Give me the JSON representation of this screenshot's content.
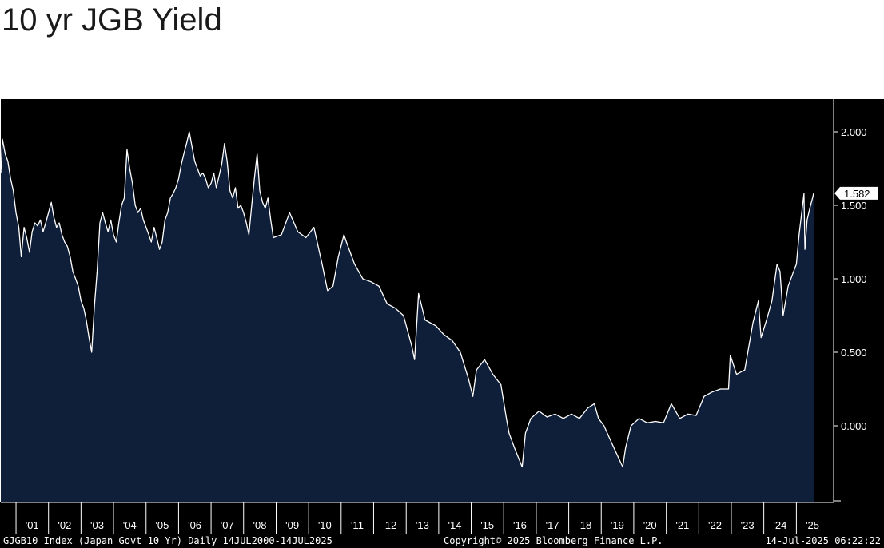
{
  "title": "10 yr JGB Yield",
  "chart_data": {
    "type": "area",
    "ylim": [
      -0.5,
      2.2
    ],
    "xlim": [
      "2000-07-14",
      "2025-07-14"
    ],
    "y_ticks": [
      "2.000",
      "1.500",
      "1.000",
      "0.500",
      "0.000"
    ],
    "x_tick_labels": [
      "'01",
      "'02",
      "'03",
      "'04",
      "'05",
      "'06",
      "'07",
      "'08",
      "'09",
      "'10",
      "'11",
      "'12",
      "'13",
      "'14",
      "'15",
      "'16",
      "'17",
      "'18",
      "'19",
      "'20",
      "'21",
      "'22",
      "'23",
      "'24",
      "'25"
    ],
    "last_value_label": "1.582",
    "colors": {
      "background": "#000000",
      "fill": "#0f1f3a",
      "line": "#ffffff",
      "axis_text": "#ffffff",
      "footer_bg": "#000000"
    },
    "grid": false,
    "series": [
      {
        "x": [
          "2000-07-14",
          "2000-08-01",
          "2000-09-01",
          "2000-10-01",
          "2000-11-01",
          "2000-12-01",
          "2001-01-01",
          "2001-02-01",
          "2001-03-01",
          "2001-04-01",
          "2001-05-01",
          "2001-06-01",
          "2001-07-01",
          "2001-08-01",
          "2001-09-01",
          "2001-10-01",
          "2001-11-01",
          "2001-12-01",
          "2002-01-01",
          "2002-02-01",
          "2002-03-01",
          "2002-04-01",
          "2002-05-01",
          "2002-06-01",
          "2002-07-01",
          "2002-08-01",
          "2002-09-01",
          "2002-10-01",
          "2002-11-01",
          "2002-12-01",
          "2003-01-01",
          "2003-02-01",
          "2003-03-01",
          "2003-04-01",
          "2003-05-01",
          "2003-06-01",
          "2003-07-01",
          "2003-08-01",
          "2003-09-01",
          "2003-10-01",
          "2003-11-01",
          "2003-12-01",
          "2004-01-01",
          "2004-02-01",
          "2004-03-01",
          "2004-04-01",
          "2004-05-01",
          "2004-06-01",
          "2004-07-01",
          "2004-08-01",
          "2004-09-01",
          "2004-10-01",
          "2004-11-01",
          "2004-12-01",
          "2005-01-01",
          "2005-02-01",
          "2005-03-01",
          "2005-04-01",
          "2005-05-01",
          "2005-06-01",
          "2005-07-01",
          "2005-08-01",
          "2005-09-01",
          "2005-10-01",
          "2005-11-01",
          "2005-12-01",
          "2006-01-01",
          "2006-02-01",
          "2006-03-01",
          "2006-04-01",
          "2006-05-01",
          "2006-06-01",
          "2006-07-01",
          "2006-08-01",
          "2006-09-01",
          "2006-10-01",
          "2006-11-01",
          "2006-12-01",
          "2007-01-01",
          "2007-02-01",
          "2007-03-01",
          "2007-04-01",
          "2007-05-01",
          "2007-06-01",
          "2007-07-01",
          "2007-08-01",
          "2007-09-01",
          "2007-10-01",
          "2007-11-01",
          "2007-12-01",
          "2008-01-01",
          "2008-02-01",
          "2008-03-01",
          "2008-04-01",
          "2008-05-01",
          "2008-06-01",
          "2008-07-01",
          "2008-08-01",
          "2008-09-01",
          "2008-10-01",
          "2008-11-01",
          "2008-12-01",
          "2009-03-01",
          "2009-06-01",
          "2009-09-01",
          "2009-12-01",
          "2010-03-01",
          "2010-06-01",
          "2010-08-01",
          "2010-10-01",
          "2010-12-01",
          "2011-02-01",
          "2011-03-01",
          "2011-06-01",
          "2011-09-01",
          "2011-12-01",
          "2012-03-01",
          "2012-06-01",
          "2012-09-01",
          "2012-12-01",
          "2013-03-01",
          "2013-04-05",
          "2013-05-20",
          "2013-08-01",
          "2013-12-01",
          "2014-03-01",
          "2014-06-01",
          "2014-09-01",
          "2014-12-01",
          "2015-01-20",
          "2015-03-01",
          "2015-06-01",
          "2015-09-01",
          "2015-12-01",
          "2016-02-01",
          "2016-03-01",
          "2016-05-01",
          "2016-07-27",
          "2016-09-01",
          "2016-11-01",
          "2017-02-01",
          "2017-05-01",
          "2017-08-01",
          "2017-11-01",
          "2018-02-01",
          "2018-05-01",
          "2018-08-01",
          "2018-10-15",
          "2018-12-01",
          "2019-02-01",
          "2019-05-01",
          "2019-08-30",
          "2019-10-01",
          "2019-12-01",
          "2020-03-01",
          "2020-06-01",
          "2020-09-01",
          "2020-12-01",
          "2021-02-26",
          "2021-06-01",
          "2021-09-01",
          "2021-12-01",
          "2022-03-01",
          "2022-06-01",
          "2022-09-01",
          "2022-12-01",
          "2022-12-21",
          "2023-03-01",
          "2023-06-01",
          "2023-09-01",
          "2023-11-01",
          "2023-12-01",
          "2024-02-01",
          "2024-04-01",
          "2024-05-29",
          "2024-07-01",
          "2024-08-05",
          "2024-10-01",
          "2024-12-01",
          "2025-01-01",
          "2025-02-01",
          "2025-03-27",
          "2025-04-07",
          "2025-05-01",
          "2025-06-01",
          "2025-07-01",
          "2025-07-14"
        ],
        "values": [
          1.72,
          1.95,
          1.85,
          1.8,
          1.68,
          1.6,
          1.45,
          1.35,
          1.15,
          1.35,
          1.28,
          1.18,
          1.32,
          1.38,
          1.36,
          1.4,
          1.32,
          1.38,
          1.45,
          1.52,
          1.42,
          1.35,
          1.38,
          1.3,
          1.25,
          1.22,
          1.15,
          1.05,
          1.0,
          0.95,
          0.85,
          0.8,
          0.72,
          0.6,
          0.5,
          0.82,
          1.05,
          1.38,
          1.45,
          1.38,
          1.32,
          1.4,
          1.3,
          1.25,
          1.38,
          1.5,
          1.55,
          1.88,
          1.75,
          1.65,
          1.5,
          1.45,
          1.48,
          1.4,
          1.35,
          1.3,
          1.25,
          1.35,
          1.28,
          1.2,
          1.25,
          1.4,
          1.45,
          1.55,
          1.58,
          1.62,
          1.68,
          1.78,
          1.85,
          1.92,
          2.0,
          1.9,
          1.8,
          1.75,
          1.7,
          1.72,
          1.68,
          1.62,
          1.65,
          1.72,
          1.62,
          1.7,
          1.78,
          1.92,
          1.8,
          1.6,
          1.55,
          1.62,
          1.48,
          1.5,
          1.45,
          1.38,
          1.3,
          1.5,
          1.68,
          1.85,
          1.6,
          1.52,
          1.48,
          1.55,
          1.4,
          1.28,
          1.3,
          1.45,
          1.32,
          1.28,
          1.35,
          1.1,
          0.92,
          0.95,
          1.15,
          1.3,
          1.25,
          1.1,
          1.0,
          0.98,
          0.95,
          0.83,
          0.8,
          0.75,
          0.55,
          0.45,
          0.9,
          0.72,
          0.68,
          0.62,
          0.58,
          0.5,
          0.32,
          0.2,
          0.38,
          0.45,
          0.35,
          0.28,
          0.05,
          -0.05,
          -0.15,
          -0.28,
          -0.05,
          0.05,
          0.1,
          0.06,
          0.08,
          0.05,
          0.08,
          0.05,
          0.12,
          0.15,
          0.05,
          0.0,
          -0.12,
          -0.28,
          -0.15,
          0.0,
          0.05,
          0.02,
          0.03,
          0.02,
          0.15,
          0.05,
          0.08,
          0.07,
          0.2,
          0.23,
          0.25,
          0.25,
          0.48,
          0.35,
          0.38,
          0.7,
          0.85,
          0.6,
          0.72,
          0.85,
          1.1,
          1.05,
          0.75,
          0.95,
          1.05,
          1.1,
          1.3,
          1.58,
          1.2,
          1.4,
          1.48,
          1.55,
          1.582
        ]
      }
    ]
  },
  "footer": {
    "left": "GJGB10 Index (Japan Govt 10 Yr)  Daily 14JUL2000-14JUL2025",
    "center": "Copyright© 2025 Bloomberg Finance L.P.",
    "right": "14-Jul-2025 06:22:22"
  }
}
